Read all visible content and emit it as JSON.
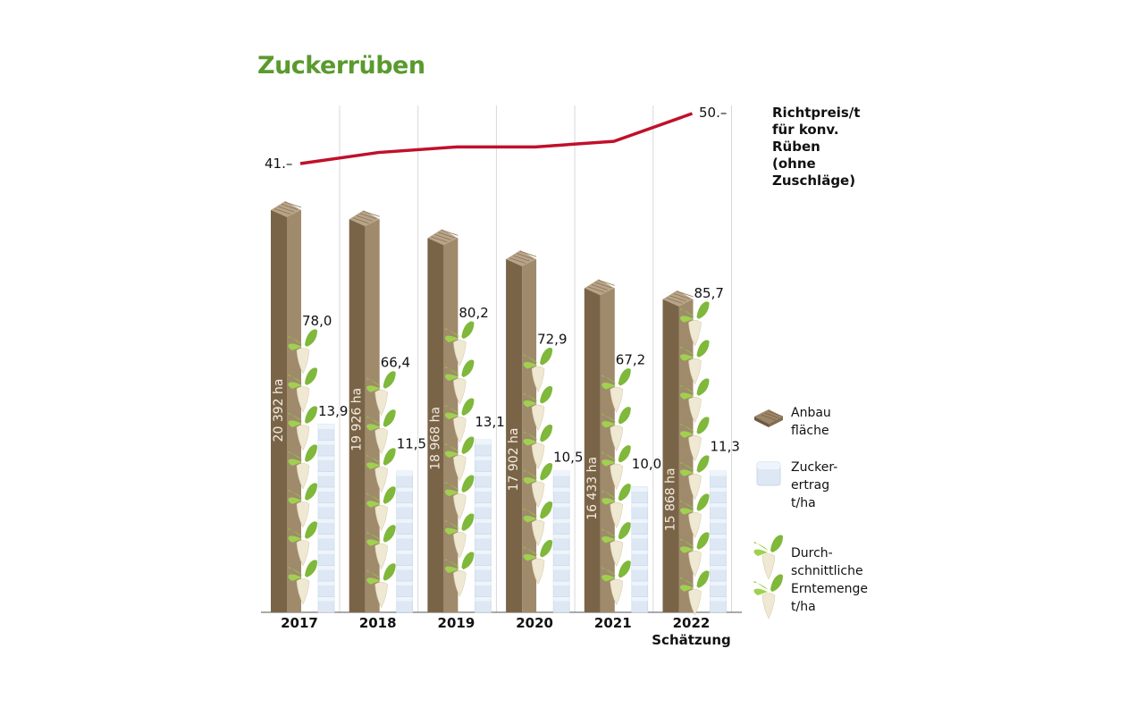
{
  "chart_data": {
    "type": "bar",
    "title": "Zuckerrüben",
    "categories": [
      "2017",
      "2018",
      "2019",
      "2020",
      "2021",
      "2022"
    ],
    "category_sublabels": [
      "",
      "",
      "",
      "",
      "",
      "Schätzung"
    ],
    "series": [
      {
        "name": "Anbaufläche",
        "unit": "ha",
        "values": [
          20392,
          19926,
          18968,
          17902,
          16433,
          15868
        ],
        "labels": [
          "20 392 ha",
          "19 926 ha",
          "18 968 ha",
          "17 902 ha",
          "16 433 ha",
          "15 868 ha"
        ],
        "color": "#7a6448"
      },
      {
        "name": "Durchschnittliche Erntemenge t/ha",
        "values": [
          78.0,
          66.4,
          80.2,
          72.9,
          67.2,
          85.7
        ],
        "labels": [
          "78,0",
          "66,4",
          "80,2",
          "72,9",
          "67,2",
          "85,7"
        ]
      },
      {
        "name": "Zuckerertrag t/ha",
        "values": [
          13.9,
          11.5,
          13.1,
          10.5,
          10.0,
          11.3
        ],
        "labels": [
          "13,9",
          "11,5",
          "13,1",
          "10,5",
          "10,0",
          "11,3"
        ],
        "color": "#dde8f4"
      },
      {
        "name": "Richtpreis/t für konv. Rüben (ohne Zuschläge)",
        "type": "line",
        "values": [
          41,
          43,
          44,
          44,
          45,
          50
        ],
        "labels": [
          "41.–",
          "",
          "",
          "",
          "",
          "50.–"
        ],
        "color": "#c0102a"
      }
    ],
    "price_label_lines": [
      "Richtpreis/t",
      "für konv.",
      "Rüben",
      " (ohne",
      "Zuschläge)"
    ],
    "legend": [
      {
        "icon": "wood-plank-icon",
        "lines": [
          "Anbau",
          "fläche"
        ]
      },
      {
        "icon": "sugar-cube-icon",
        "lines": [
          "Zucker-",
          "ertrag",
          "t/ha"
        ]
      },
      {
        "icon": "sugar-beet-icon",
        "lines": [
          "Durch-",
          "schnittliche",
          "Erntemenge",
          "t/ha"
        ]
      }
    ],
    "legend_placement": "right",
    "grid": "vertical"
  }
}
